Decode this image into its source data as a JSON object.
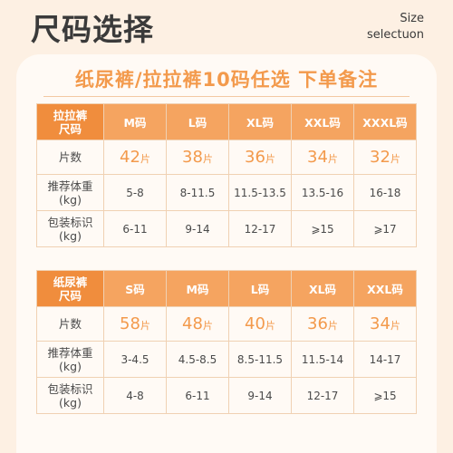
{
  "header": {
    "title": "尺码选择",
    "en_line1": "Size",
    "en_line2": "selectuon"
  },
  "banner": "纸尿裤/拉拉裤10码任选  下单备注",
  "pull_ups": {
    "corner": [
      "拉拉裤",
      "尺码"
    ],
    "sizes": [
      "M码",
      "L码",
      "XL码",
      "XXL码",
      "XXXL码"
    ],
    "count_label": "片数",
    "counts": [
      "42",
      "38",
      "36",
      "34",
      "32"
    ],
    "piece_unit": "片",
    "weight_label": [
      "推荐体重",
      "(kg)"
    ],
    "weights": [
      "5-8",
      "8-11.5",
      "11.5-13.5",
      "13.5-16",
      "16-18"
    ],
    "pack_label": [
      "包装标识",
      "(kg)"
    ],
    "packs": [
      "6-11",
      "9-14",
      "12-17",
      "⩾15",
      "⩾17"
    ]
  },
  "diapers": {
    "corner": [
      "纸尿裤",
      "尺码"
    ],
    "sizes": [
      "S码",
      "M码",
      "L码",
      "XL码",
      "XXL码"
    ],
    "count_label": "片数",
    "counts": [
      "58",
      "48",
      "40",
      "36",
      "34"
    ],
    "piece_unit": "片",
    "weight_label": [
      "推荐体重",
      "(kg)"
    ],
    "weights": [
      "3-4.5",
      "4.5-8.5",
      "8.5-11.5",
      "11.5-14",
      "14-17"
    ],
    "pack_label": [
      "包装标识",
      "(kg)"
    ],
    "packs": [
      "4-8",
      "6-11",
      "9-14",
      "12-17",
      "⩾15"
    ]
  },
  "colors": {
    "accent": "#f39a4c",
    "header_bg": "#f5a460",
    "corner_bg": "#f08d3d",
    "page_bg": "#fdf0e3"
  }
}
